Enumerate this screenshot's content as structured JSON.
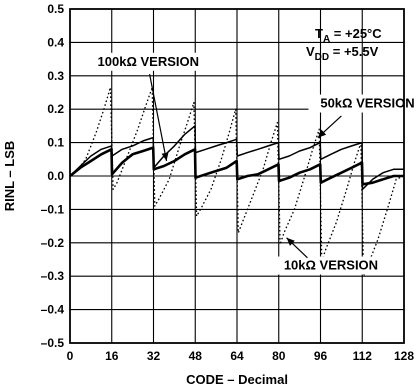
{
  "chart_data": {
    "type": "line",
    "xlabel": "CODE – Decimal",
    "ylabel": "RINL – LSB",
    "xlim": [
      0,
      128
    ],
    "ylim": [
      -0.5,
      0.5
    ],
    "x_ticks": [
      0,
      16,
      32,
      48,
      64,
      80,
      96,
      112,
      128
    ],
    "y_ticks": [
      0.5,
      0.4,
      0.3,
      0.2,
      0.1,
      0.0,
      -0.1,
      -0.2,
      -0.3,
      -0.4,
      -0.5
    ],
    "y_tick_labels": [
      "0.5",
      "0.4",
      "0.3",
      "0.2",
      "0.1",
      "0.0",
      "–0.1",
      "–0.2",
      "–0.3",
      "–0.4",
      "–0.5"
    ],
    "grid": true,
    "conditions": {
      "ta": {
        "base": "T",
        "sub": "A",
        "value": " = +25°C"
      },
      "vdd": {
        "base": "V",
        "sub": "DD",
        "value": " = +5.5V"
      }
    },
    "annotations": {
      "v100k": "100kΩ VERSION",
      "v50k": "50kΩ VERSION",
      "v10k": "10kΩ VERSION"
    },
    "series": [
      {
        "name": "100kΩ VERSION",
        "style": "thick-solid",
        "x": [
          0,
          4,
          8,
          12,
          15.9,
          16.1,
          20,
          24,
          28,
          31.9,
          32.1,
          36,
          40,
          44,
          47.9,
          48.1,
          52,
          56,
          60,
          63.9,
          64.1,
          68,
          72,
          76,
          79.9,
          80.1,
          84,
          88,
          92,
          95.9,
          96.1,
          100,
          104,
          108,
          111.9,
          112.1,
          116,
          120,
          124,
          128
        ],
        "y": [
          0.0,
          0.025,
          0.045,
          0.065,
          0.08,
          0.005,
          0.04,
          0.065,
          0.075,
          0.085,
          0.02,
          0.03,
          0.045,
          0.065,
          0.08,
          -0.005,
          0.005,
          0.015,
          0.025,
          0.045,
          -0.01,
          0.0,
          0.005,
          0.02,
          0.035,
          -0.015,
          -0.005,
          0.01,
          0.02,
          0.035,
          -0.02,
          -0.005,
          0.01,
          0.025,
          0.04,
          -0.025,
          -0.02,
          -0.01,
          0.0,
          0.0
        ]
      },
      {
        "name": "50kΩ VERSION",
        "style": "thin-solid",
        "x": [
          0,
          4,
          8,
          12,
          15.9,
          16.1,
          20,
          24,
          28,
          31.9,
          32.1,
          36,
          40,
          44,
          47.9,
          48.1,
          52,
          56,
          60,
          63.9,
          64.1,
          68,
          72,
          76,
          79.9,
          80.1,
          84,
          88,
          92,
          95.9,
          96.1,
          100,
          104,
          108,
          111.9,
          112.1,
          116,
          120,
          124,
          128
        ],
        "y": [
          0.0,
          0.03,
          0.06,
          0.08,
          0.09,
          0.06,
          0.08,
          0.09,
          0.105,
          0.115,
          0.025,
          0.06,
          0.09,
          0.125,
          0.15,
          0.07,
          0.08,
          0.09,
          0.1,
          0.11,
          0.06,
          0.07,
          0.08,
          0.09,
          0.1,
          0.05,
          0.06,
          0.075,
          0.085,
          0.1,
          0.05,
          0.065,
          0.08,
          0.09,
          0.1,
          -0.04,
          -0.01,
          0.01,
          0.02,
          0.02
        ]
      },
      {
        "name": "10kΩ VERSION",
        "style": "dotted",
        "x": [
          0,
          2,
          6,
          10,
          13,
          15.5,
          16.5,
          18,
          22,
          26,
          29,
          31.5,
          32.5,
          34,
          38,
          42,
          45,
          47.5,
          48.5,
          50,
          54,
          58,
          61,
          63.5,
          64.5,
          66,
          70,
          74,
          77,
          79.5,
          80.5,
          82,
          86,
          90,
          93,
          95.5,
          96.5,
          98,
          102,
          106,
          109,
          111.5,
          112.5,
          114,
          118,
          122,
          125,
          128
        ],
        "y": [
          0.0,
          0.01,
          0.05,
          0.13,
          0.2,
          0.265,
          -0.04,
          -0.02,
          0.06,
          0.14,
          0.21,
          0.265,
          -0.09,
          -0.07,
          -0.01,
          0.09,
          0.16,
          0.22,
          -0.12,
          -0.1,
          -0.04,
          0.05,
          0.13,
          0.2,
          -0.17,
          -0.14,
          -0.06,
          0.02,
          0.1,
          0.16,
          -0.205,
          -0.17,
          -0.1,
          0.0,
          0.08,
          0.14,
          -0.255,
          -0.22,
          -0.14,
          -0.04,
          0.04,
          0.1,
          -0.3,
          -0.27,
          -0.19,
          -0.09,
          -0.01,
          0.0
        ]
      }
    ]
  }
}
